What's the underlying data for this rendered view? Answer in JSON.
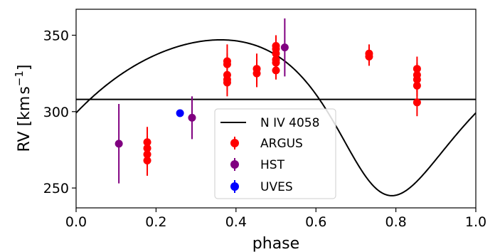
{
  "chart_data": {
    "type": "scatter",
    "xlabel": "phase",
    "ylabel": "RV [kms$^{-1}$]",
    "ylabel_parts": {
      "main": "RV [km",
      "s": "s",
      "sup": "−1",
      "close": "]"
    },
    "xlim": [
      0.0,
      1.0
    ],
    "ylim": [
      237,
      367
    ],
    "x_ticks": [
      {
        "value": 0.0,
        "label": "0.0"
      },
      {
        "value": 0.2,
        "label": "0.2"
      },
      {
        "value": 0.4,
        "label": "0.4"
      },
      {
        "value": 0.6,
        "label": "0.6"
      },
      {
        "value": 0.8,
        "label": "0.8"
      },
      {
        "value": 1.0,
        "label": "1.0"
      }
    ],
    "y_ticks": [
      {
        "value": 250,
        "label": "250"
      },
      {
        "value": 300,
        "label": "300"
      },
      {
        "value": 350,
        "label": "350"
      }
    ],
    "grid": false,
    "legend_position": "bottom-center",
    "systemic_velocity": 308,
    "model": {
      "name": "N IV 4058",
      "color": "#000000",
      "systemic": 308,
      "amplitude": 51,
      "eccentricity": 0.26,
      "omega_deg": 155,
      "phase_shift": 0.25
    },
    "series": [
      {
        "name": "ARGUS",
        "color": "#ff0000",
        "points": [
          {
            "x": 0.178,
            "y": 280,
            "err": 10
          },
          {
            "x": 0.178,
            "y": 276,
            "err": 8
          },
          {
            "x": 0.178,
            "y": 272,
            "err": 8
          },
          {
            "x": 0.178,
            "y": 268,
            "err": 10
          },
          {
            "x": 0.378,
            "y": 333,
            "err": 11
          },
          {
            "x": 0.378,
            "y": 331,
            "err": 7
          },
          {
            "x": 0.378,
            "y": 324,
            "err": 6
          },
          {
            "x": 0.378,
            "y": 321,
            "err": 7
          },
          {
            "x": 0.378,
            "y": 319,
            "err": 9
          },
          {
            "x": 0.452,
            "y": 328,
            "err": 10
          },
          {
            "x": 0.452,
            "y": 325,
            "err": 9
          },
          {
            "x": 0.5,
            "y": 343,
            "err": 7
          },
          {
            "x": 0.5,
            "y": 341,
            "err": 6
          },
          {
            "x": 0.5,
            "y": 338,
            "err": 8
          },
          {
            "x": 0.5,
            "y": 334,
            "err": 7
          },
          {
            "x": 0.5,
            "y": 332,
            "err": 6
          },
          {
            "x": 0.5,
            "y": 327,
            "err": 6
          },
          {
            "x": 0.733,
            "y": 338,
            "err": 6
          },
          {
            "x": 0.733,
            "y": 336,
            "err": 6
          },
          {
            "x": 0.853,
            "y": 328,
            "err": 8
          },
          {
            "x": 0.853,
            "y": 324,
            "err": 8
          },
          {
            "x": 0.853,
            "y": 321,
            "err": 8
          },
          {
            "x": 0.853,
            "y": 317,
            "err": 7
          },
          {
            "x": 0.853,
            "y": 306,
            "err": 9
          }
        ]
      },
      {
        "name": "HST",
        "color": "#800080",
        "points": [
          {
            "x": 0.107,
            "y": 279,
            "err": 26
          },
          {
            "x": 0.29,
            "y": 296,
            "err": 14
          },
          {
            "x": 0.522,
            "y": 342,
            "err": 19
          }
        ]
      },
      {
        "name": "UVES",
        "color": "#0000ff",
        "points": [
          {
            "x": 0.26,
            "y": 299,
            "err": 1
          }
        ]
      }
    ]
  }
}
